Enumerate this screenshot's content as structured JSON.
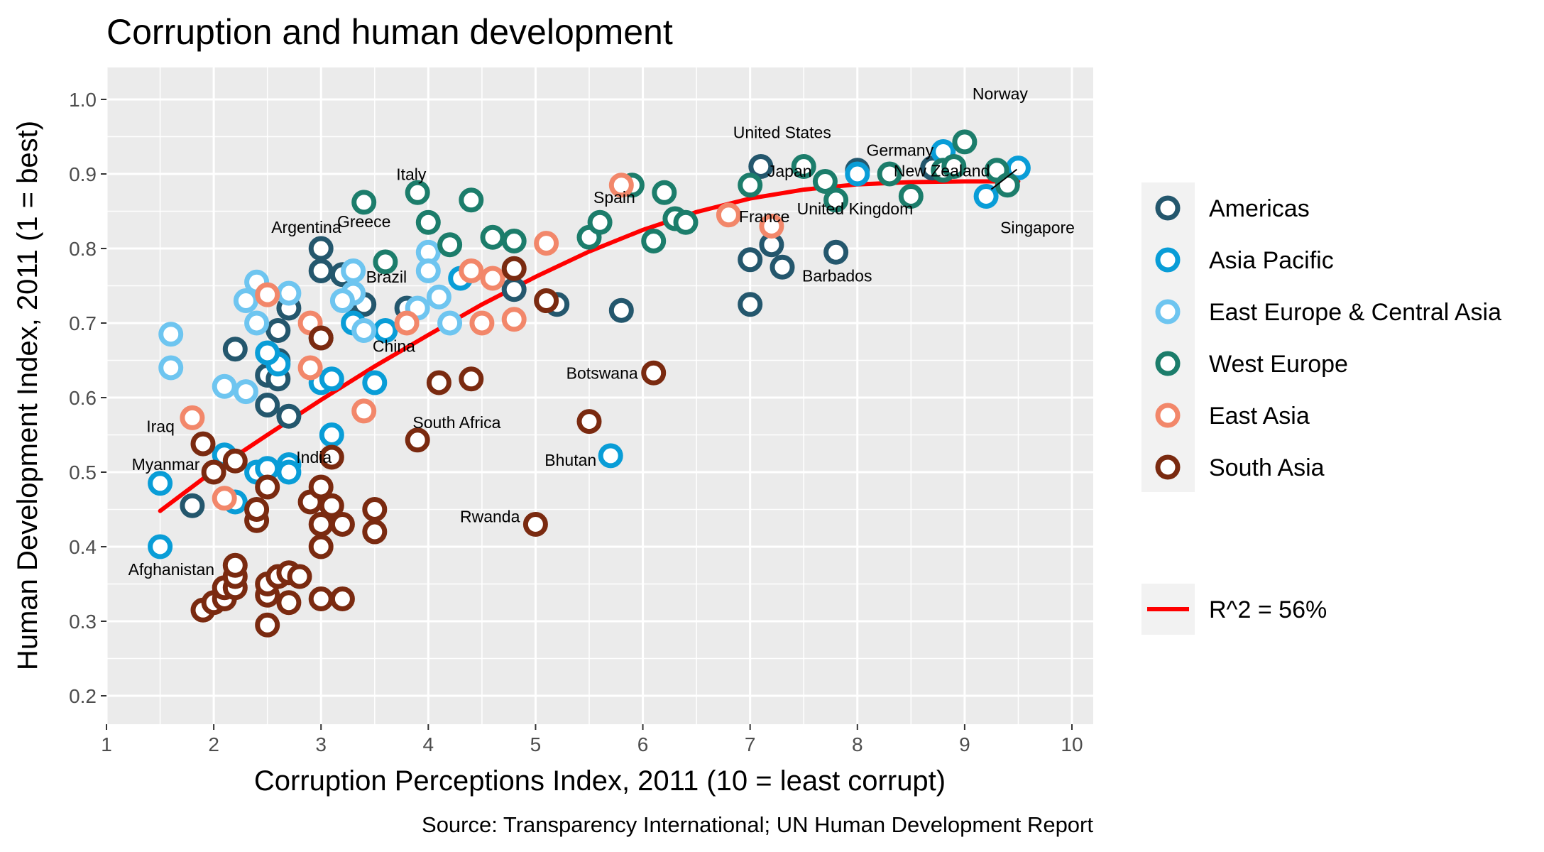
{
  "chart_data": {
    "type": "scatter",
    "title": "Corruption and human development",
    "xlabel": "Corruption Perceptions Index, 2011 (10 = least corrupt)",
    "ylabel": "Human Development Index, 2011 (1 = best)",
    "caption": "Source: Transparency International; UN Human Development Report",
    "xlim": [
      1,
      10
    ],
    "ylim": [
      0.2,
      1.0
    ],
    "xticks": [
      "1",
      "2",
      "3",
      "4",
      "5",
      "6",
      "7",
      "8",
      "9",
      "10"
    ],
    "yticks": [
      "0.2",
      "0.3",
      "0.4",
      "0.5",
      "0.6",
      "0.7",
      "0.8",
      "0.9",
      "1.0"
    ],
    "grid": true,
    "legend_position": "right",
    "series": [
      {
        "name": "Americas",
        "color": "#24576D",
        "points": [
          [
            1.8,
            0.455
          ],
          [
            2.2,
            0.665
          ],
          [
            2.5,
            0.63
          ],
          [
            2.5,
            0.59
          ],
          [
            2.6,
            0.625
          ],
          [
            2.6,
            0.65
          ],
          [
            2.7,
            0.575
          ],
          [
            2.7,
            0.72
          ],
          [
            2.6,
            0.69
          ],
          [
            3.0,
            0.8
          ],
          [
            3.0,
            0.77
          ],
          [
            3.0,
            0.68
          ],
          [
            3.2,
            0.765
          ],
          [
            3.3,
            0.73
          ],
          [
            3.4,
            0.725
          ],
          [
            3.8,
            0.72
          ],
          [
            4.8,
            0.745
          ],
          [
            5.2,
            0.725
          ],
          [
            5.8,
            0.717
          ],
          [
            7.0,
            0.725
          ],
          [
            7.0,
            0.785
          ],
          [
            7.2,
            0.805
          ],
          [
            7.3,
            0.775
          ],
          [
            7.8,
            0.795
          ],
          [
            7.1,
            0.91
          ],
          [
            8.0,
            0.905
          ],
          [
            8.7,
            0.908
          ]
        ]
      },
      {
        "name": "Asia Pacific",
        "color": "#099DD7",
        "points": [
          [
            1.5,
            0.4
          ],
          [
            1.5,
            0.485
          ],
          [
            2.1,
            0.523
          ],
          [
            2.2,
            0.46
          ],
          [
            2.4,
            0.5
          ],
          [
            2.5,
            0.505
          ],
          [
            2.6,
            0.645
          ],
          [
            2.7,
            0.51
          ],
          [
            2.7,
            0.5
          ],
          [
            2.5,
            0.66
          ],
          [
            3.0,
            0.62
          ],
          [
            3.1,
            0.625
          ],
          [
            3.1,
            0.55
          ],
          [
            3.3,
            0.7
          ],
          [
            3.5,
            0.62
          ],
          [
            3.6,
            0.69
          ],
          [
            4.3,
            0.76
          ],
          [
            5.7,
            0.522
          ],
          [
            8.0,
            0.9
          ],
          [
            8.8,
            0.93
          ],
          [
            9.2,
            0.87
          ],
          [
            9.5,
            0.908
          ]
        ]
      },
      {
        "name": "East Europe & Central Asia",
        "color": "#6EC5F0",
        "points": [
          [
            1.6,
            0.685
          ],
          [
            1.6,
            0.64
          ],
          [
            2.1,
            0.615
          ],
          [
            2.3,
            0.608
          ],
          [
            2.3,
            0.73
          ],
          [
            2.4,
            0.755
          ],
          [
            2.4,
            0.7
          ],
          [
            2.7,
            0.74
          ],
          [
            3.3,
            0.74
          ],
          [
            3.3,
            0.77
          ],
          [
            3.4,
            0.69
          ],
          [
            4.0,
            0.795
          ],
          [
            4.0,
            0.77
          ],
          [
            4.1,
            0.735
          ],
          [
            4.2,
            0.7
          ],
          [
            3.9,
            0.72
          ],
          [
            3.2,
            0.73
          ]
        ]
      },
      {
        "name": "West Europe",
        "color": "#1C7D6B",
        "points": [
          [
            3.4,
            0.862
          ],
          [
            3.6,
            0.782
          ],
          [
            3.9,
            0.875
          ],
          [
            4.0,
            0.835
          ],
          [
            4.2,
            0.805
          ],
          [
            4.4,
            0.865
          ],
          [
            4.6,
            0.815
          ],
          [
            4.8,
            0.81
          ],
          [
            5.5,
            0.815
          ],
          [
            5.6,
            0.835
          ],
          [
            5.9,
            0.885
          ],
          [
            6.1,
            0.81
          ],
          [
            6.2,
            0.875
          ],
          [
            6.3,
            0.84
          ],
          [
            6.4,
            0.835
          ],
          [
            7.0,
            0.885
          ],
          [
            7.5,
            0.91
          ],
          [
            7.7,
            0.89
          ],
          [
            7.8,
            0.865
          ],
          [
            8.3,
            0.9
          ],
          [
            8.5,
            0.87
          ],
          [
            8.8,
            0.905
          ],
          [
            8.9,
            0.91
          ],
          [
            9.0,
            0.943
          ],
          [
            9.3,
            0.905
          ],
          [
            9.4,
            0.885
          ]
        ]
      },
      {
        "name": "East Asia",
        "color": "#F2876A",
        "points": [
          [
            1.8,
            0.573
          ],
          [
            2.1,
            0.465
          ],
          [
            2.5,
            0.738
          ],
          [
            2.9,
            0.7
          ],
          [
            2.9,
            0.64
          ],
          [
            3.4,
            0.582
          ],
          [
            3.8,
            0.7
          ],
          [
            4.4,
            0.77
          ],
          [
            4.5,
            0.7
          ],
          [
            4.6,
            0.76
          ],
          [
            4.8,
            0.705
          ],
          [
            5.1,
            0.807
          ],
          [
            5.8,
            0.885
          ],
          [
            6.8,
            0.845
          ],
          [
            7.2,
            0.83
          ]
        ]
      },
      {
        "name": "South Asia",
        "color": "#7A2A10",
        "points": [
          [
            1.9,
            0.315
          ],
          [
            2.0,
            0.325
          ],
          [
            2.0,
            0.5
          ],
          [
            1.9,
            0.538
          ],
          [
            2.1,
            0.33
          ],
          [
            2.1,
            0.345
          ],
          [
            2.2,
            0.345
          ],
          [
            2.2,
            0.36
          ],
          [
            2.2,
            0.375
          ],
          [
            2.2,
            0.515
          ],
          [
            2.4,
            0.435
          ],
          [
            2.4,
            0.45
          ],
          [
            2.5,
            0.295
          ],
          [
            2.5,
            0.335
          ],
          [
            2.5,
            0.35
          ],
          [
            2.5,
            0.48
          ],
          [
            2.6,
            0.36
          ],
          [
            2.7,
            0.325
          ],
          [
            2.7,
            0.365
          ],
          [
            2.8,
            0.36
          ],
          [
            2.9,
            0.46
          ],
          [
            3.0,
            0.33
          ],
          [
            3.0,
            0.4
          ],
          [
            3.0,
            0.43
          ],
          [
            3.0,
            0.48
          ],
          [
            3.1,
            0.455
          ],
          [
            3.1,
            0.52
          ],
          [
            3.2,
            0.33
          ],
          [
            3.2,
            0.43
          ],
          [
            3.5,
            0.42
          ],
          [
            3.5,
            0.45
          ],
          [
            3.9,
            0.543
          ],
          [
            4.1,
            0.62
          ],
          [
            4.4,
            0.625
          ],
          [
            4.8,
            0.773
          ],
          [
            5.1,
            0.73
          ],
          [
            5.0,
            0.43
          ],
          [
            5.5,
            0.568
          ],
          [
            6.1,
            0.633
          ],
          [
            3.0,
            0.68
          ]
        ]
      }
    ],
    "annotations": [
      {
        "text": "Norway",
        "x": 9.0,
        "y": 0.943
      },
      {
        "text": "United States",
        "x": 7.1,
        "y": 0.91
      },
      {
        "text": "Germany",
        "x": 8.0,
        "y": 0.905
      },
      {
        "text": "Japan",
        "x": 7.5,
        "y": 0.901
      },
      {
        "text": "New Zealand",
        "x": 9.5,
        "y": 0.908
      },
      {
        "text": "Italy",
        "x": 3.9,
        "y": 0.875
      },
      {
        "text": "Spain",
        "x": 5.9,
        "y": 0.885
      },
      {
        "text": "France",
        "x": 7.0,
        "y": 0.845
      },
      {
        "text": "United Kingdom",
        "x": 7.8,
        "y": 0.865
      },
      {
        "text": "Singapore",
        "x": 9.2,
        "y": 0.87
      },
      {
        "text": "Greece",
        "x": 3.4,
        "y": 0.862
      },
      {
        "text": "Barbados",
        "x": 7.3,
        "y": 0.775
      },
      {
        "text": "Argentina",
        "x": 3.0,
        "y": 0.8
      },
      {
        "text": "Brazil",
        "x": 3.8,
        "y": 0.72
      },
      {
        "text": "China",
        "x": 3.6,
        "y": 0.69
      },
      {
        "text": "Botswana",
        "x": 6.1,
        "y": 0.633
      },
      {
        "text": "South Africa",
        "x": 4.1,
        "y": 0.62
      },
      {
        "text": "Iraq",
        "x": 1.8,
        "y": 0.573
      },
      {
        "text": "Bhutan",
        "x": 5.7,
        "y": 0.522
      },
      {
        "text": "India",
        "x": 3.1,
        "y": 0.52
      },
      {
        "text": "Myanmar",
        "x": 1.5,
        "y": 0.485
      },
      {
        "text": "Rwanda",
        "x": 5.0,
        "y": 0.43
      },
      {
        "text": "Afghanistan",
        "x": 1.5,
        "y": 0.4
      }
    ],
    "fit_line": {
      "name": "R^2 = 56%",
      "color": "#FF0000",
      "x": [
        1.5,
        2.0,
        2.5,
        3.0,
        3.5,
        4.0,
        4.5,
        5.0,
        5.5,
        6.0,
        6.5,
        7.0,
        7.5,
        8.0,
        8.5,
        9.0,
        9.5
      ],
      "y": [
        0.448,
        0.502,
        0.55,
        0.597,
        0.642,
        0.684,
        0.725,
        0.762,
        0.796,
        0.825,
        0.849,
        0.867,
        0.879,
        0.886,
        0.889,
        0.89,
        0.89
      ]
    }
  }
}
